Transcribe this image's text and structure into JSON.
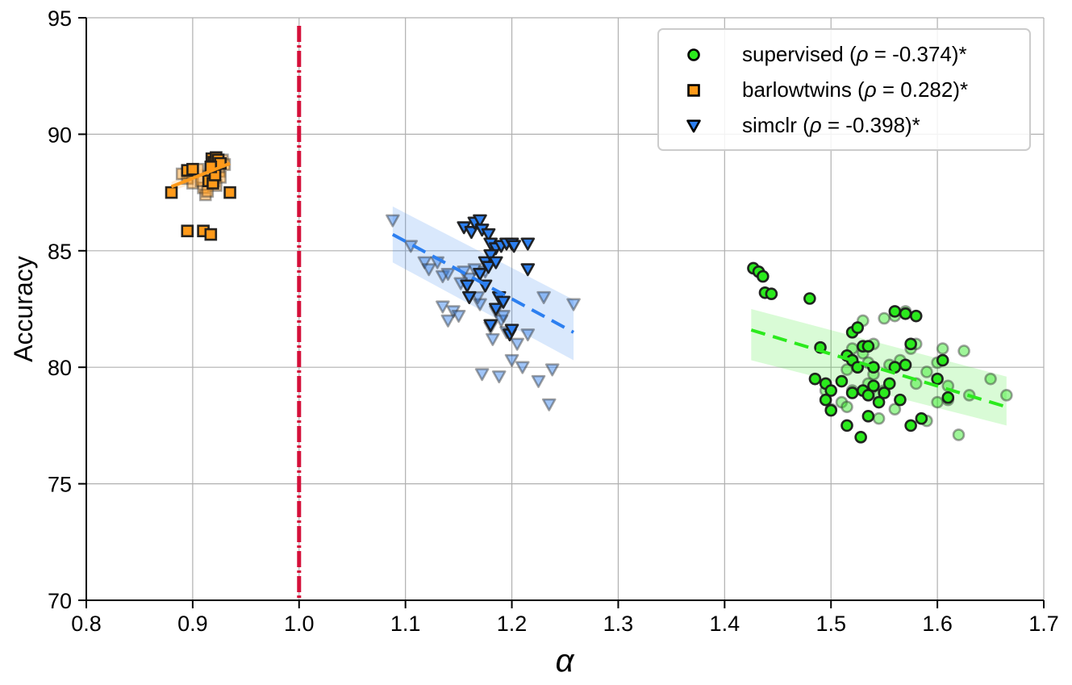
{
  "chart_data": {
    "type": "scatter",
    "title": "",
    "xlabel": "α",
    "ylabel": "Accuracy",
    "xlim": [
      0.8,
      1.7
    ],
    "ylim": [
      70,
      95
    ],
    "xticks": [
      "0.8",
      "0.9",
      "1.0",
      "1.1",
      "1.2",
      "1.3",
      "1.4",
      "1.5",
      "1.6",
      "1.7"
    ],
    "yticks": [
      "70",
      "75",
      "80",
      "85",
      "90",
      "95"
    ],
    "xtick_values": [
      0.8,
      0.9,
      1.0,
      1.1,
      1.2,
      1.3,
      1.4,
      1.5,
      1.6,
      1.7
    ],
    "ytick_values": [
      70,
      75,
      80,
      85,
      90,
      95
    ],
    "grid": true,
    "legend_position": "top-right",
    "reference_line": {
      "x": 1.0,
      "color": "#d5103a",
      "style": "dash-dot"
    },
    "colors": {
      "supervised": "#2bea1d",
      "barlowtwins": "#ff9a1a",
      "simclr": "#2c7ff0",
      "reference": "#d5103a",
      "grid": "#b0b0b0"
    },
    "series": [
      {
        "name": "supervised",
        "legend_label": "supervised (ρ = -0.374)*",
        "legend_prefix": "supervised (",
        "legend_rho": "ρ",
        "legend_suffix": " = -0.374)*",
        "marker": "circle",
        "color": "#2bea1d",
        "fit": {
          "x": [
            1.425,
            1.665
          ],
          "y": [
            81.6,
            78.3
          ],
          "ci_low": [
            80.3,
            77.5
          ],
          "ci_high": [
            82.5,
            79.6
          ]
        },
        "points_light": [
          [
            1.53,
            80.6
          ],
          [
            1.525,
            80.0
          ],
          [
            1.54,
            79.7
          ],
          [
            1.535,
            79.3
          ],
          [
            1.52,
            79.0
          ],
          [
            1.51,
            78.5
          ],
          [
            1.515,
            78.3
          ],
          [
            1.545,
            78.8
          ],
          [
            1.55,
            79.0
          ],
          [
            1.56,
            78.2
          ],
          [
            1.565,
            80.3
          ],
          [
            1.575,
            80.8
          ],
          [
            1.59,
            77.7
          ],
          [
            1.6,
            78.5
          ],
          [
            1.61,
            79.2
          ],
          [
            1.62,
            77.1
          ],
          [
            1.625,
            80.7
          ],
          [
            1.65,
            79.5
          ],
          [
            1.665,
            78.8
          ],
          [
            1.63,
            78.8
          ],
          [
            1.56,
            82.2
          ],
          [
            1.57,
            82.4
          ],
          [
            1.555,
            80.1
          ],
          [
            1.58,
            79.3
          ],
          [
            1.54,
            81.0
          ],
          [
            1.55,
            82.1
          ],
          [
            1.535,
            80.2
          ],
          [
            1.5,
            78.2
          ],
          [
            1.495,
            79.0
          ],
          [
            1.58,
            81.0
          ],
          [
            1.605,
            80.8
          ],
          [
            1.52,
            80.8
          ],
          [
            1.545,
            77.8
          ],
          [
            1.53,
            82.0
          ],
          [
            1.515,
            79.9
          ],
          [
            1.59,
            79.8
          ],
          [
            1.6,
            80.2
          ],
          [
            1.61,
            78.6
          ]
        ],
        "points_dark": [
          [
            1.427,
            84.25
          ],
          [
            1.432,
            84.1
          ],
          [
            1.436,
            83.9
          ],
          [
            1.438,
            83.2
          ],
          [
            1.444,
            83.15
          ],
          [
            1.48,
            82.95
          ],
          [
            1.49,
            80.85
          ],
          [
            1.485,
            79.5
          ],
          [
            1.495,
            79.3
          ],
          [
            1.5,
            79.0
          ],
          [
            1.495,
            78.6
          ],
          [
            1.5,
            78.15
          ],
          [
            1.51,
            79.4
          ],
          [
            1.515,
            80.5
          ],
          [
            1.52,
            80.3
          ],
          [
            1.52,
            81.5
          ],
          [
            1.525,
            81.7
          ],
          [
            1.53,
            80.9
          ],
          [
            1.525,
            80.0
          ],
          [
            1.53,
            79.0
          ],
          [
            1.535,
            78.8
          ],
          [
            1.535,
            77.9
          ],
          [
            1.528,
            77.0
          ],
          [
            1.515,
            77.5
          ],
          [
            1.54,
            79.2
          ],
          [
            1.545,
            78.5
          ],
          [
            1.55,
            78.9
          ],
          [
            1.555,
            79.3
          ],
          [
            1.56,
            80.0
          ],
          [
            1.565,
            78.6
          ],
          [
            1.57,
            80.1
          ],
          [
            1.575,
            81.0
          ],
          [
            1.58,
            82.2
          ],
          [
            1.575,
            77.5
          ],
          [
            1.585,
            77.8
          ],
          [
            1.6,
            79.5
          ],
          [
            1.605,
            80.3
          ],
          [
            1.61,
            78.7
          ],
          [
            1.56,
            82.4
          ],
          [
            1.57,
            82.3
          ],
          [
            1.52,
            78.9
          ],
          [
            1.54,
            80.0
          ],
          [
            1.535,
            80.9
          ]
        ]
      },
      {
        "name": "barlowtwins",
        "legend_label": "barlowtwins (ρ = 0.282)*",
        "legend_prefix": "barlowtwins (",
        "legend_rho": "ρ",
        "legend_suffix": " = 0.282)*",
        "marker": "square",
        "color": "#ff9a1a",
        "fit": {
          "x": [
            0.88,
            0.935
          ],
          "y": [
            87.75,
            88.75
          ],
          "ci_low": [
            87.55,
            88.45
          ],
          "ci_high": [
            87.95,
            89.05
          ]
        },
        "points_light": [
          [
            0.89,
            88.3
          ],
          [
            0.895,
            88.1
          ],
          [
            0.9,
            87.9
          ],
          [
            0.905,
            88.5
          ],
          [
            0.91,
            87.7
          ],
          [
            0.912,
            87.4
          ],
          [
            0.915,
            88.2
          ],
          [
            0.918,
            88.6
          ],
          [
            0.92,
            88.0
          ],
          [
            0.922,
            87.8
          ],
          [
            0.925,
            88.4
          ],
          [
            0.928,
            88.9
          ],
          [
            0.93,
            88.7
          ],
          [
            0.908,
            88.0
          ],
          [
            0.897,
            88.35
          ],
          [
            0.914,
            87.55
          ],
          [
            0.919,
            88.8
          ],
          [
            0.926,
            88.15
          ]
        ],
        "points_dark": [
          [
            0.88,
            87.5
          ],
          [
            0.895,
            88.45
          ],
          [
            0.9,
            88.5
          ],
          [
            0.915,
            88.0
          ],
          [
            0.918,
            88.95
          ],
          [
            0.92,
            88.8
          ],
          [
            0.922,
            89.0
          ],
          [
            0.924,
            88.9
          ],
          [
            0.926,
            88.75
          ],
          [
            0.919,
            87.9
          ],
          [
            0.921,
            88.25
          ],
          [
            0.935,
            87.5
          ],
          [
            0.895,
            85.85
          ],
          [
            0.91,
            85.85
          ],
          [
            0.917,
            85.7
          ],
          [
            0.917,
            88.6
          ]
        ]
      },
      {
        "name": "simclr",
        "legend_label": "simclr (ρ = -0.398)*",
        "legend_prefix": "simclr (",
        "legend_rho": "ρ",
        "legend_suffix": " = -0.398)*",
        "marker": "triangle-down",
        "color": "#2c7ff0",
        "fit": {
          "x": [
            1.088,
            1.258
          ],
          "y": [
            85.7,
            81.5
          ],
          "ci_low": [
            84.5,
            80.3
          ],
          "ci_high": [
            86.9,
            82.9
          ]
        },
        "points_light": [
          [
            1.088,
            86.3
          ],
          [
            1.105,
            85.2
          ],
          [
            1.118,
            84.5
          ],
          [
            1.122,
            84.2
          ],
          [
            1.13,
            84.5
          ],
          [
            1.135,
            83.9
          ],
          [
            1.14,
            84.0
          ],
          [
            1.145,
            82.4
          ],
          [
            1.14,
            82.0
          ],
          [
            1.135,
            82.6
          ],
          [
            1.15,
            82.2
          ],
          [
            1.155,
            84.1
          ],
          [
            1.16,
            83.8
          ],
          [
            1.165,
            84.2
          ],
          [
            1.17,
            82.7
          ],
          [
            1.172,
            79.7
          ],
          [
            1.18,
            81.7
          ],
          [
            1.182,
            81.2
          ],
          [
            1.185,
            82.4
          ],
          [
            1.188,
            79.6
          ],
          [
            1.19,
            82.0
          ],
          [
            1.195,
            81.5
          ],
          [
            1.2,
            80.3
          ],
          [
            1.205,
            81.0
          ],
          [
            1.21,
            80.0
          ],
          [
            1.215,
            81.4
          ],
          [
            1.225,
            79.4
          ],
          [
            1.23,
            83.0
          ],
          [
            1.235,
            78.4
          ],
          [
            1.238,
            79.9
          ],
          [
            1.258,
            82.7
          ],
          [
            1.175,
            84.1
          ],
          [
            1.168,
            83.0
          ],
          [
            1.152,
            83.6
          ],
          [
            1.192,
            82.2
          ]
        ],
        "points_dark": [
          [
            1.155,
            86.0
          ],
          [
            1.162,
            85.8
          ],
          [
            1.165,
            86.2
          ],
          [
            1.17,
            86.3
          ],
          [
            1.172,
            85.9
          ],
          [
            1.178,
            85.7
          ],
          [
            1.18,
            85.3
          ],
          [
            1.185,
            85.1
          ],
          [
            1.19,
            85.2
          ],
          [
            1.195,
            85.3
          ],
          [
            1.2,
            85.3
          ],
          [
            1.215,
            85.3
          ],
          [
            1.215,
            84.2
          ],
          [
            1.175,
            84.5
          ],
          [
            1.178,
            84.3
          ],
          [
            1.18,
            84.8
          ],
          [
            1.185,
            84.5
          ],
          [
            1.17,
            84.0
          ],
          [
            1.175,
            83.5
          ],
          [
            1.158,
            83.5
          ],
          [
            1.185,
            82.5
          ],
          [
            1.188,
            83.0
          ],
          [
            1.192,
            82.8
          ],
          [
            1.18,
            81.8
          ],
          [
            1.198,
            81.4
          ],
          [
            1.2,
            81.6
          ],
          [
            1.16,
            83.0
          ],
          [
            1.202,
            85.2
          ]
        ]
      }
    ]
  }
}
